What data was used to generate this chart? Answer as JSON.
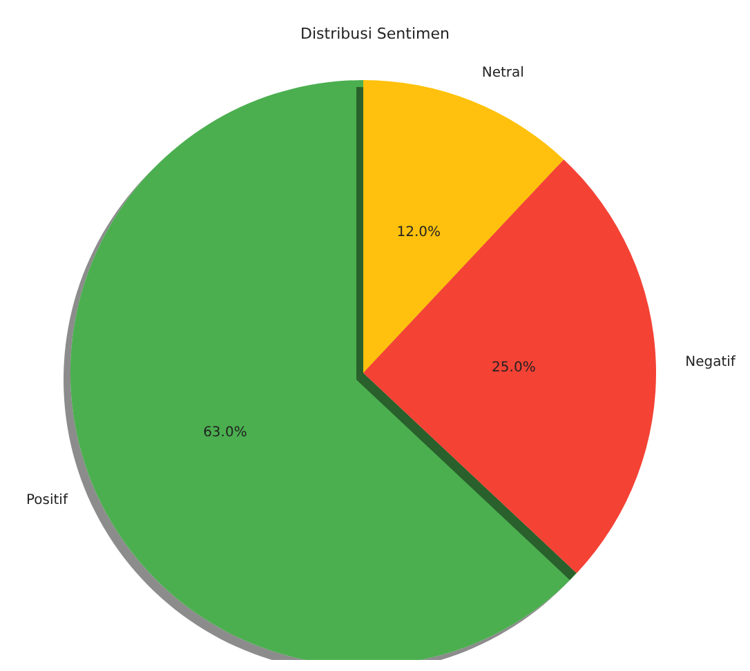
{
  "chart_data": {
    "type": "pie",
    "title": "Distribusi Sentimen",
    "categories": [
      "Positif",
      "Negatif",
      "Netral"
    ],
    "values": [
      63,
      25,
      12
    ],
    "colors": [
      "#4caf50",
      "#f44336",
      "#ffc107"
    ],
    "value_labels": [
      "63.0%",
      "25.0%",
      "12.0%"
    ]
  }
}
